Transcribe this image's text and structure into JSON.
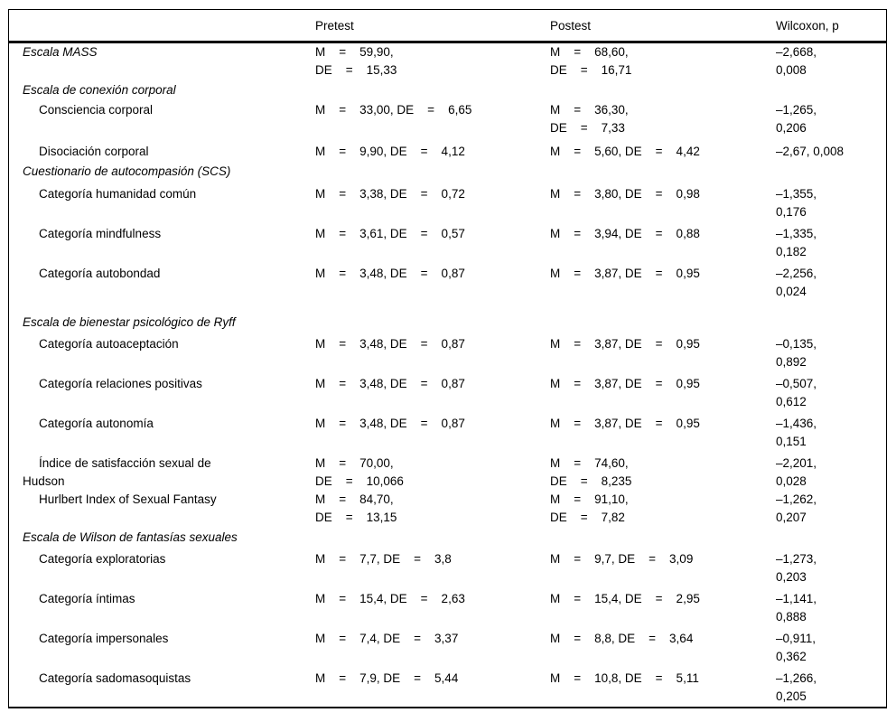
{
  "table": {
    "header": {
      "label": "",
      "pretest": "Pretest",
      "postest": "Postest",
      "wilcoxon": "Wilcoxon, p"
    },
    "rows": [
      {
        "label": "Escala MASS",
        "pretest": "M    =    59,90,\nDE    =    15,33",
        "postest": "M    =    68,60,\nDE    =    16,71",
        "wilcoxon": "–2,668,\n0,008"
      },
      {
        "label": "Escala de conexión corporal",
        "pretest": "",
        "postest": "",
        "wilcoxon": ""
      },
      {
        "label": "Consciencia corporal",
        "pretest": "M    =    33,00, DE    =    6,65",
        "postest": "M    =    36,30,\nDE    =    7,33",
        "wilcoxon": "–1,265,\n0,206"
      },
      {
        "label": "Disociación corporal",
        "pretest": "M    =    9,90, DE    =    4,12",
        "postest": "M    =    5,60, DE    =    4,42",
        "wilcoxon": "–2,67, 0,008"
      },
      {
        "label": "Cuestionario de autocompasión (SCS)",
        "pretest": "",
        "postest": "",
        "wilcoxon": ""
      },
      {
        "label": "Categoría humanidad común",
        "pretest": "M    =    3,38, DE    =    0,72",
        "postest": "M    =    3,80, DE    =    0,98",
        "wilcoxon": "–1,355,\n0,176"
      },
      {
        "label": "Categoría mindfulness",
        "pretest": "M    =    3,61, DE    =    0,57",
        "postest": "M    =    3,94, DE    =    0,88",
        "wilcoxon": "–1,335,\n0,182"
      },
      {
        "label": "Categoría autobondad",
        "pretest": "M    =    3,48, DE    =    0,87",
        "postest": "M    =    3,87, DE    =    0,95",
        "wilcoxon": "–2,256,\n0,024"
      },
      {
        "label": "Escala de bienestar psicológico de Ryff",
        "pretest": "",
        "postest": "",
        "wilcoxon": ""
      },
      {
        "label": "Categoría autoaceptación",
        "pretest": "M    =    3,48, DE    =    0,87",
        "postest": "M    =    3,87, DE    =    0,95",
        "wilcoxon": "–0,135,\n0,892"
      },
      {
        "label": "Categoría relaciones positivas",
        "pretest": "M    =    3,48, DE    =    0,87",
        "postest": "M    =    3,87, DE    =    0,95",
        "wilcoxon": "–0,507,\n0,612"
      },
      {
        "label": "Categoría autonomía",
        "pretest": "M    =    3,48, DE    =    0,87",
        "postest": "M    =    3,87, DE    =    0,95",
        "wilcoxon": "–1,436,\n0,151"
      },
      {
        "label": "Índice de satisfacción sexual de\nHudson",
        "pretest": "M    =    70,00,\nDE    =    10,066",
        "postest": "M    =    74,60,\nDE    =    8,235",
        "wilcoxon": "–2,201,\n0,028"
      },
      {
        "label": "Hurlbert Index of Sexual Fantasy",
        "pretest": "M    =    84,70,\nDE    =    13,15",
        "postest": "M    =    91,10,\nDE    =    7,82",
        "wilcoxon": "–1,262,\n0,207"
      },
      {
        "label": "Escala de Wilson de fantasías sexuales",
        "pretest": "",
        "postest": "",
        "wilcoxon": ""
      },
      {
        "label": "Categoría exploratorias",
        "pretest": "M    =    7,7, DE    =    3,8",
        "postest": "M    =    9,7, DE    =    3,09",
        "wilcoxon": "–1,273,\n0,203"
      },
      {
        "label": "Categoría íntimas",
        "pretest": "M    =    15,4, DE    =    2,63",
        "postest": "M    =    15,4, DE    =    2,95",
        "wilcoxon": "–1,141,\n0,888"
      },
      {
        "label": "Categoría impersonales",
        "pretest": "M    =    7,4, DE    =    3,37",
        "postest": "M    =    8,8, DE    =    3,64",
        "wilcoxon": "–0,911,\n0,362"
      },
      {
        "label": "Categoría sadomasoquistas",
        "pretest": "M    =    7,9, DE    =    5,44",
        "postest": "M    =    10,8, DE    =    5,11",
        "wilcoxon": "–1,266,\n0,205"
      }
    ]
  }
}
